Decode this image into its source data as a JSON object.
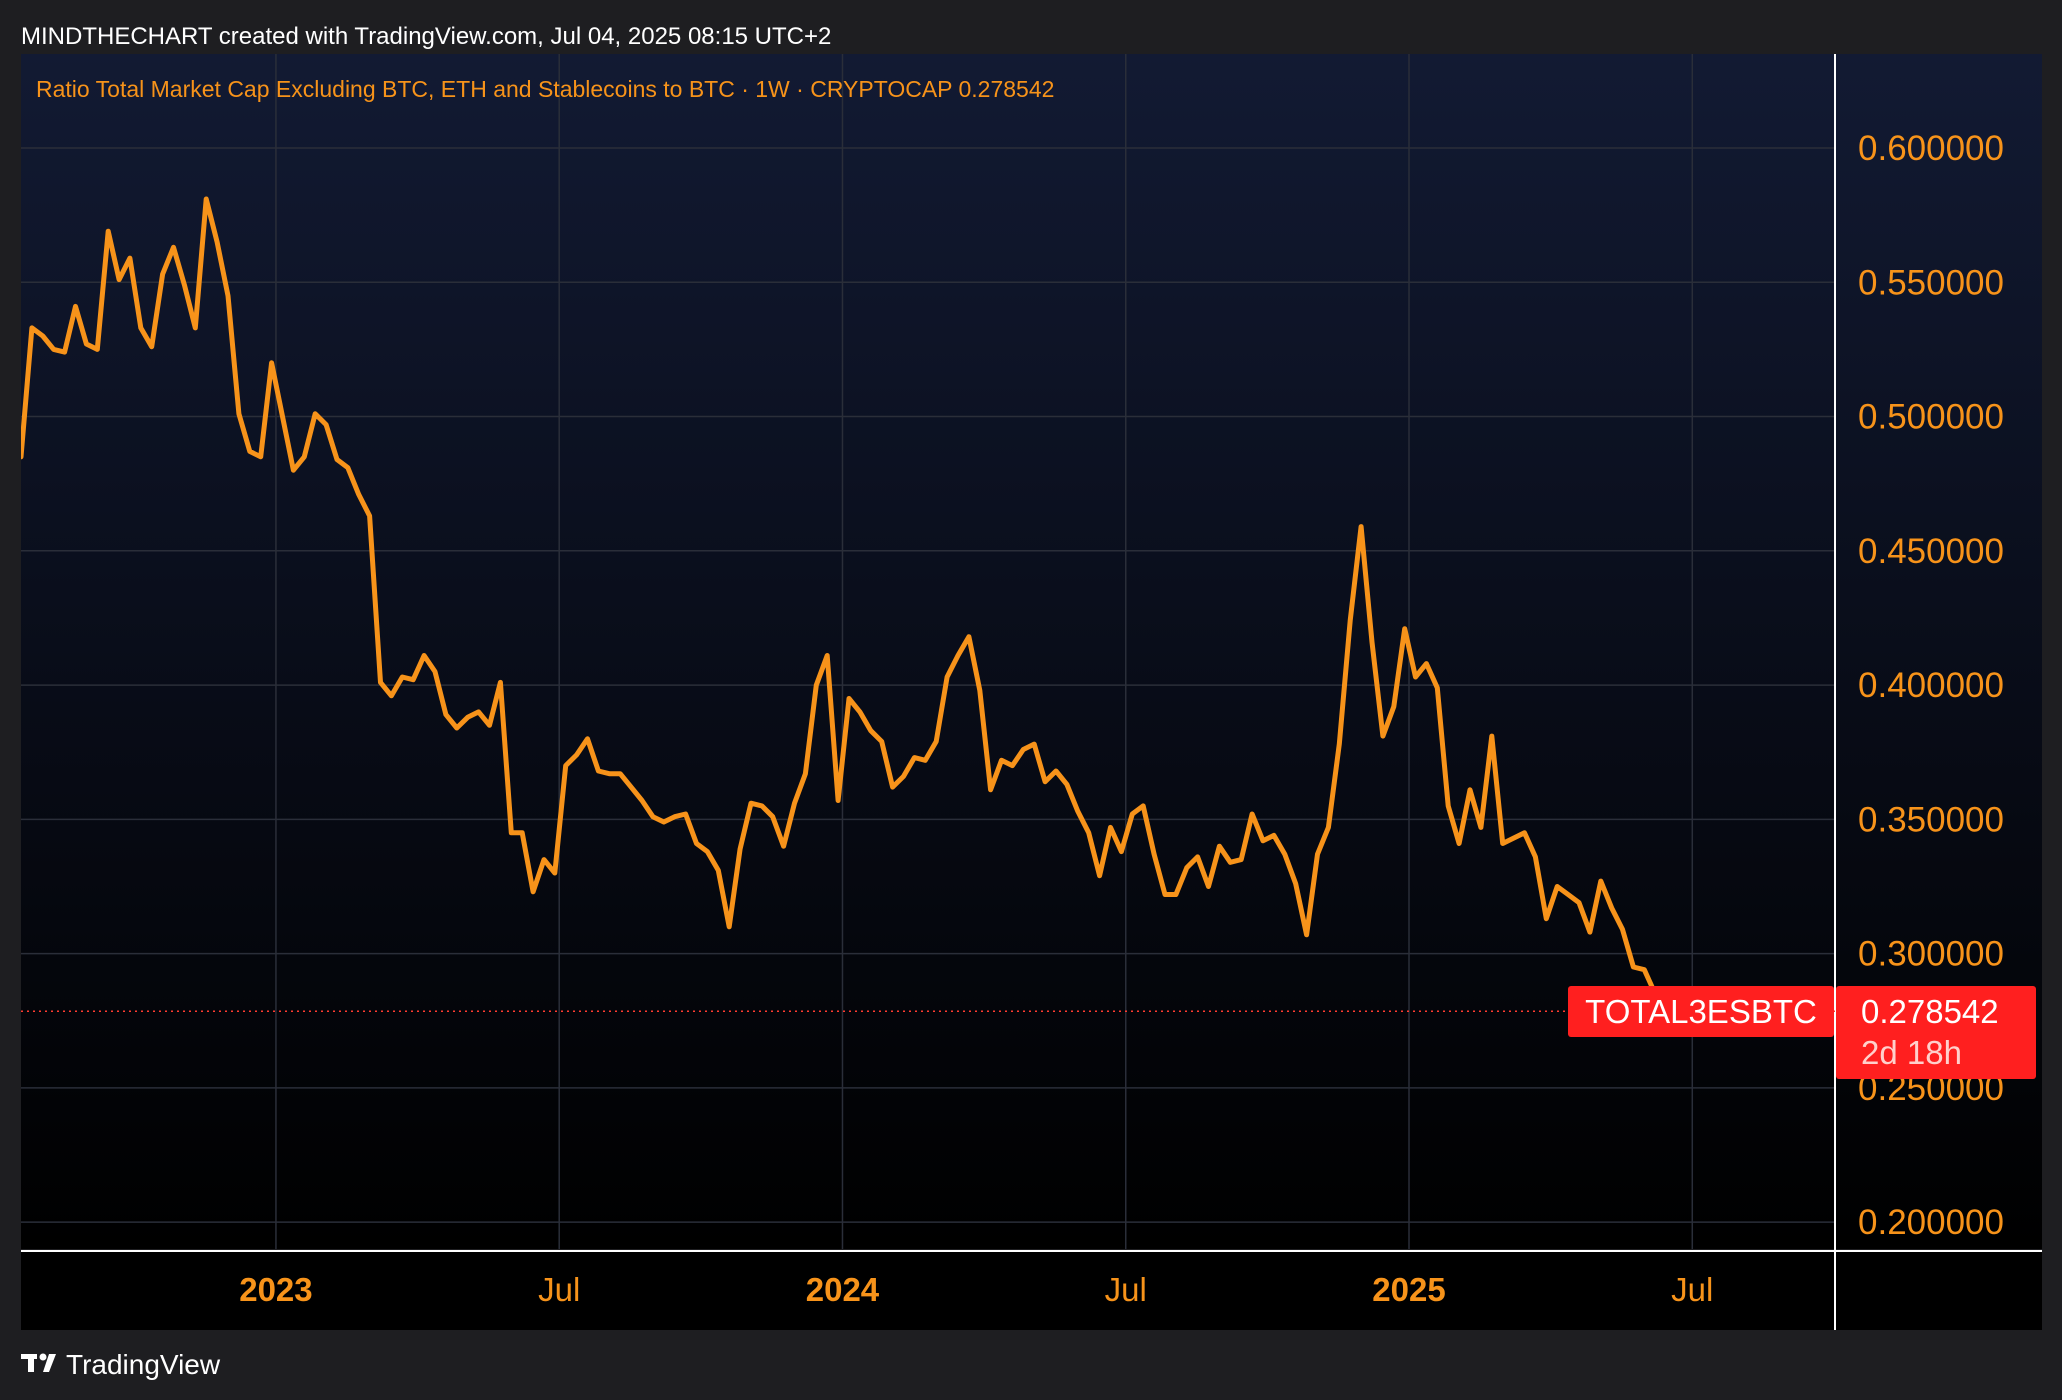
{
  "header": {
    "attribution": "MINDTHECHART created with TradingView.com, Jul 04, 2025 08:15 UTC+2"
  },
  "legend": {
    "title": "Ratio Total Market Cap Excluding BTC, ETH and Stablecoins to BTC · 1W · CRYPTOCAP  0.278542"
  },
  "badge": {
    "symbol": "TOTAL3ESBTC",
    "price": "0.278542",
    "countdown": "2d 18h"
  },
  "footer": {
    "brand": "TradingView"
  },
  "colors": {
    "line": "#f7931a",
    "badge": "#ff1f1f",
    "grid": "#2a2e39",
    "background_top": "#121a33",
    "background_bottom": "#000000"
  },
  "chart_data": {
    "type": "line",
    "title": "Ratio Total Market Cap Excluding BTC, ETH and Stablecoins to BTC",
    "series_name": "TOTAL3ESBTC",
    "interval": "1W",
    "ylim": [
      0.19,
      0.635
    ],
    "y_ticks": [
      "0.600000",
      "0.550000",
      "0.500000",
      "0.450000",
      "0.400000",
      "0.350000",
      "0.300000",
      "0.250000",
      "0.200000"
    ],
    "y_tick_values": [
      0.6,
      0.55,
      0.5,
      0.45,
      0.4,
      0.35,
      0.3,
      0.25,
      0.2
    ],
    "x_ticks": [
      {
        "label": "2023",
        "week": 0,
        "year": true
      },
      {
        "label": "Jul",
        "week": 26,
        "year": false
      },
      {
        "label": "2024",
        "week": 52,
        "year": true
      },
      {
        "label": "Jul",
        "week": 78,
        "year": false
      },
      {
        "label": "2025",
        "week": 104,
        "year": true
      },
      {
        "label": "Jul",
        "week": 130,
        "year": false
      }
    ],
    "x_range_weeks": [
      -23.4,
      143.1
    ],
    "last_value": 0.278542,
    "values": [
      0.485,
      0.533,
      0.53,
      0.525,
      0.524,
      0.541,
      0.527,
      0.525,
      0.569,
      0.551,
      0.559,
      0.533,
      0.526,
      0.553,
      0.563,
      0.549,
      0.533,
      0.581,
      0.565,
      0.545,
      0.501,
      0.487,
      0.485,
      0.52,
      0.5,
      0.48,
      0.485,
      0.501,
      0.497,
      0.484,
      0.481,
      0.471,
      0.463,
      0.401,
      0.396,
      0.403,
      0.402,
      0.411,
      0.405,
      0.389,
      0.384,
      0.388,
      0.39,
      0.385,
      0.401,
      0.345,
      0.345,
      0.323,
      0.335,
      0.33,
      0.37,
      0.374,
      0.38,
      0.368,
      0.367,
      0.367,
      0.362,
      0.357,
      0.351,
      0.349,
      0.351,
      0.352,
      0.341,
      0.338,
      0.331,
      0.31,
      0.339,
      0.356,
      0.355,
      0.351,
      0.34,
      0.356,
      0.367,
      0.4,
      0.411,
      0.357,
      0.395,
      0.39,
      0.383,
      0.379,
      0.362,
      0.366,
      0.373,
      0.372,
      0.379,
      0.403,
      0.411,
      0.418,
      0.398,
      0.361,
      0.372,
      0.37,
      0.376,
      0.378,
      0.364,
      0.368,
      0.363,
      0.353,
      0.345,
      0.329,
      0.347,
      0.338,
      0.352,
      0.355,
      0.337,
      0.322,
      0.322,
      0.332,
      0.336,
      0.325,
      0.34,
      0.334,
      0.335,
      0.352,
      0.342,
      0.344,
      0.337,
      0.326,
      0.307,
      0.337,
      0.347,
      0.378,
      0.424,
      0.459,
      0.416,
      0.381,
      0.392,
      0.421,
      0.403,
      0.408,
      0.399,
      0.355,
      0.341,
      0.361,
      0.347,
      0.381,
      0.341,
      0.343,
      0.345,
      0.336,
      0.313,
      0.325,
      0.322,
      0.319,
      0.308,
      0.327,
      0.317,
      0.309,
      0.295,
      0.294,
      0.285,
      0.278542
    ]
  }
}
